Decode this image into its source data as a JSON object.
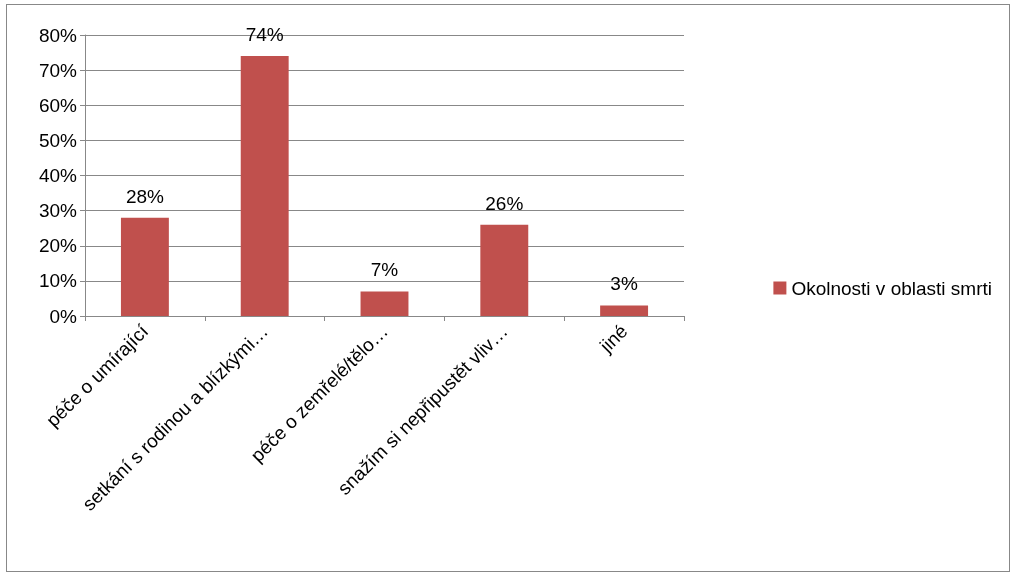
{
  "chart_data": {
    "type": "bar",
    "categories": [
      "péče o umírající",
      "setkání s rodinou a blízkými…",
      "péče o zemřelé/tělo…",
      "snažím si nepřipustět vliv…",
      "jiné"
    ],
    "series": [
      {
        "name": "Okolnosti v oblasti smrti",
        "color": "#c0504d",
        "values": [
          28,
          74,
          7,
          26,
          3
        ],
        "value_labels": [
          "28%",
          "74%",
          "7%",
          "26%",
          "3%"
        ]
      }
    ],
    "ylim": [
      0,
      80
    ],
    "yticks": [
      {
        "value": 0,
        "label": "0%"
      },
      {
        "value": 10,
        "label": "10%"
      },
      {
        "value": 20,
        "label": "20%"
      },
      {
        "value": 30,
        "label": "30%"
      },
      {
        "value": 40,
        "label": "40%"
      },
      {
        "value": 50,
        "label": "50%"
      },
      {
        "value": 60,
        "label": "60%"
      },
      {
        "value": 70,
        "label": "70%"
      },
      {
        "value": 80,
        "label": "80%"
      }
    ],
    "grid": "y",
    "legend": "right"
  }
}
